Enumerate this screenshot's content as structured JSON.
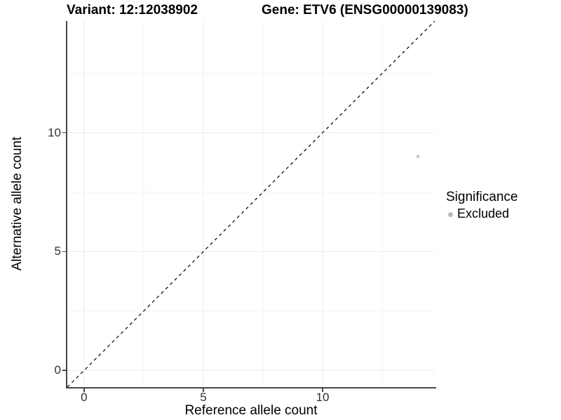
{
  "chart_data": {
    "type": "scatter",
    "titles": {
      "left": "Variant: 12:12038902",
      "right": "Gene: ETV6 (ENSG00000139083)"
    },
    "xlabel": "Reference allele count",
    "ylabel": "Alternative allele count",
    "xlim": [
      -0.7,
      14.7
    ],
    "ylim": [
      -0.7,
      14.7
    ],
    "x_ticks": [
      0,
      5,
      10
    ],
    "y_ticks": [
      0,
      5,
      10
    ],
    "x_minor_ticks": [
      2.5,
      7.5,
      12.5
    ],
    "y_minor_ticks": [
      2.5,
      7.5,
      12.5
    ],
    "grid": true,
    "points": [
      {
        "x": 14,
        "y": 9,
        "significance": "Excluded"
      }
    ],
    "reference_line": {
      "type": "identity",
      "equation": "y = x",
      "style": "dashed",
      "color": "#111111"
    },
    "legend": {
      "title": "Significance",
      "position": "right",
      "items": [
        {
          "label": "Excluded",
          "color": "#b9b9b9"
        }
      ]
    },
    "colors": {
      "point": "#c3c3c3",
      "grid_major": "#ebebeb",
      "grid_minor": "#f4f4f4",
      "axis_line": "#474747",
      "tick_text": "#303030",
      "background": "#ffffff"
    }
  }
}
